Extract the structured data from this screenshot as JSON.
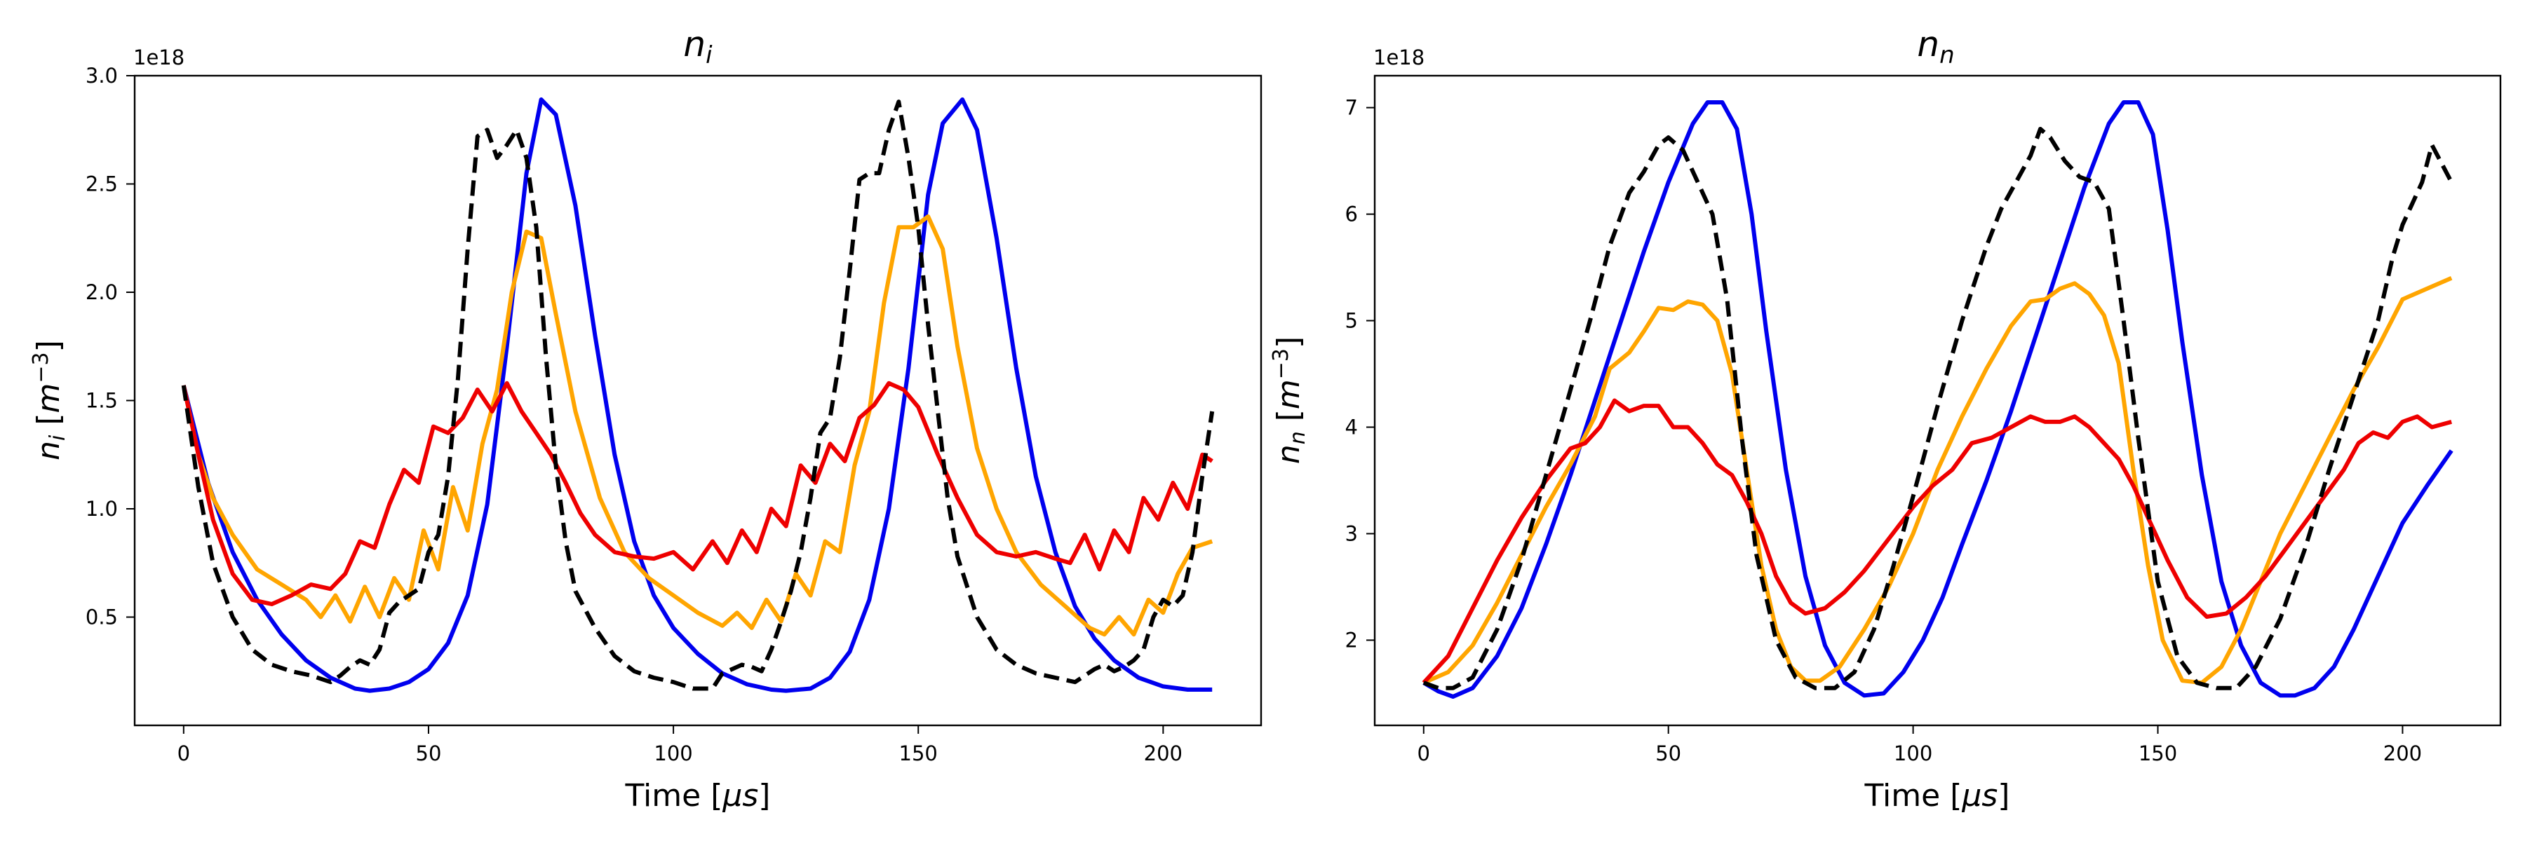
{
  "chart_data": [
    {
      "type": "line",
      "title": "n_i",
      "title_base": "n",
      "title_sub": "i",
      "xlabel": "Time [μs]",
      "xlabel_main": "Time [",
      "xlabel_unit": "μs",
      "xlabel_close": "]",
      "ylabel": "n_i [m^-3]",
      "ylabel_base": "n",
      "ylabel_sub": "i",
      "ylabel_unit_open": " [",
      "ylabel_unit_base": "m",
      "ylabel_unit_sup": "−3",
      "ylabel_unit_close": "]",
      "y_offset_label": "1e18",
      "xlim": [
        -10,
        220
      ],
      "ylim": [
        0.0,
        3.0
      ],
      "xticks": [
        0,
        50,
        100,
        150,
        200
      ],
      "yticks": [
        0.5,
        1.0,
        1.5,
        2.0,
        2.5,
        3.0
      ],
      "ytick_labels": [
        "0.5",
        "1.0",
        "1.5",
        "2.0",
        "2.5",
        "3.0"
      ],
      "grid": false,
      "series": [
        {
          "color": "#0000ee",
          "dash": "solid",
          "x": [
            0,
            5,
            10,
            15,
            20,
            25,
            30,
            35,
            38,
            42,
            46,
            50,
            54,
            58,
            62,
            66,
            70,
            73,
            76,
            80,
            84,
            88,
            92,
            96,
            100,
            105,
            110,
            115,
            120,
            123,
            128,
            132,
            136,
            140,
            144,
            148,
            152,
            155,
            159,
            162,
            166,
            170,
            174,
            178,
            182,
            186,
            190,
            195,
            200,
            205,
            210
          ],
          "y": [
            1.57,
            1.12,
            0.8,
            0.58,
            0.42,
            0.3,
            0.22,
            0.17,
            0.16,
            0.17,
            0.2,
            0.26,
            0.38,
            0.6,
            1.02,
            1.75,
            2.55,
            2.89,
            2.82,
            2.4,
            1.8,
            1.25,
            0.85,
            0.6,
            0.45,
            0.33,
            0.24,
            0.19,
            0.165,
            0.16,
            0.17,
            0.22,
            0.34,
            0.58,
            1.0,
            1.65,
            2.45,
            2.78,
            2.89,
            2.75,
            2.25,
            1.65,
            1.15,
            0.8,
            0.55,
            0.4,
            0.3,
            0.22,
            0.18,
            0.165,
            0.165
          ]
        },
        {
          "color": "#ffa500",
          "dash": "solid",
          "x": [
            0,
            3,
            6,
            10,
            15,
            20,
            25,
            28,
            31,
            34,
            37,
            40,
            43,
            46,
            49,
            52,
            55,
            58,
            61,
            64,
            67,
            70,
            73,
            76,
            80,
            85,
            90,
            95,
            100,
            105,
            110,
            113,
            116,
            119,
            122,
            125,
            128,
            131,
            134,
            137,
            140,
            143,
            146,
            149,
            152,
            155,
            158,
            162,
            166,
            170,
            175,
            180,
            185,
            188,
            191,
            194,
            197,
            200,
            203,
            206,
            210
          ],
          "y": [
            1.57,
            1.25,
            1.05,
            0.88,
            0.72,
            0.65,
            0.58,
            0.5,
            0.6,
            0.48,
            0.64,
            0.5,
            0.68,
            0.58,
            0.9,
            0.72,
            1.1,
            0.9,
            1.3,
            1.55,
            2.0,
            2.28,
            2.25,
            1.9,
            1.45,
            1.05,
            0.8,
            0.68,
            0.6,
            0.52,
            0.46,
            0.52,
            0.45,
            0.58,
            0.48,
            0.7,
            0.6,
            0.85,
            0.8,
            1.2,
            1.45,
            1.95,
            2.3,
            2.3,
            2.35,
            2.2,
            1.75,
            1.28,
            1.0,
            0.8,
            0.65,
            0.55,
            0.45,
            0.42,
            0.5,
            0.42,
            0.58,
            0.52,
            0.7,
            0.82,
            0.85
          ]
        },
        {
          "color": "#ee0000",
          "dash": "solid",
          "x": [
            0,
            3,
            6,
            10,
            14,
            18,
            22,
            26,
            30,
            33,
            36,
            39,
            42,
            45,
            48,
            51,
            54,
            57,
            60,
            63,
            66,
            69,
            72,
            75,
            78,
            81,
            84,
            88,
            92,
            96,
            100,
            104,
            108,
            111,
            114,
            117,
            120,
            123,
            126,
            129,
            132,
            135,
            138,
            141,
            144,
            147,
            150,
            154,
            158,
            162,
            166,
            170,
            174,
            178,
            181,
            184,
            187,
            190,
            193,
            196,
            199,
            202,
            205,
            208,
            210
          ],
          "y": [
            1.57,
            1.25,
            0.95,
            0.7,
            0.58,
            0.56,
            0.6,
            0.65,
            0.63,
            0.7,
            0.85,
            0.82,
            1.02,
            1.18,
            1.12,
            1.38,
            1.35,
            1.42,
            1.55,
            1.45,
            1.58,
            1.45,
            1.35,
            1.25,
            1.12,
            0.98,
            0.88,
            0.8,
            0.78,
            0.77,
            0.8,
            0.72,
            0.85,
            0.75,
            0.9,
            0.8,
            1.0,
            0.92,
            1.2,
            1.12,
            1.3,
            1.22,
            1.42,
            1.48,
            1.58,
            1.55,
            1.47,
            1.25,
            1.05,
            0.88,
            0.8,
            0.78,
            0.8,
            0.77,
            0.75,
            0.88,
            0.72,
            0.9,
            0.8,
            1.05,
            0.95,
            1.12,
            1.0,
            1.25,
            1.22
          ]
        },
        {
          "color": "#000000",
          "dash": "dashed",
          "x": [
            0,
            3,
            6,
            10,
            14,
            18,
            22,
            26,
            30,
            32,
            34,
            36,
            38,
            40,
            42,
            44,
            46,
            48,
            50,
            52,
            54,
            56,
            58,
            60,
            62,
            64,
            66,
            68,
            70,
            72,
            74,
            76,
            78,
            80,
            84,
            88,
            92,
            96,
            100,
            104,
            108,
            110,
            112,
            114,
            116,
            118,
            120,
            122,
            124,
            126,
            128,
            130,
            132,
            134,
            136,
            138,
            140,
            142,
            144,
            146,
            148,
            150,
            152,
            154,
            156,
            158,
            162,
            166,
            170,
            174,
            178,
            182,
            186,
            188,
            190,
            192,
            194,
            196,
            198,
            200,
            202,
            204,
            206,
            208,
            210
          ],
          "y": [
            1.57,
            1.1,
            0.75,
            0.5,
            0.35,
            0.28,
            0.25,
            0.23,
            0.2,
            0.23,
            0.27,
            0.3,
            0.28,
            0.35,
            0.52,
            0.57,
            0.6,
            0.63,
            0.8,
            0.88,
            1.15,
            1.6,
            2.2,
            2.72,
            2.75,
            2.62,
            2.68,
            2.75,
            2.62,
            2.3,
            1.7,
            1.2,
            0.85,
            0.62,
            0.45,
            0.32,
            0.25,
            0.22,
            0.2,
            0.17,
            0.17,
            0.24,
            0.26,
            0.28,
            0.27,
            0.25,
            0.35,
            0.48,
            0.62,
            0.8,
            1.05,
            1.35,
            1.42,
            1.7,
            2.1,
            2.52,
            2.55,
            2.55,
            2.75,
            2.88,
            2.62,
            2.3,
            1.85,
            1.45,
            1.05,
            0.78,
            0.5,
            0.35,
            0.28,
            0.24,
            0.22,
            0.2,
            0.26,
            0.28,
            0.25,
            0.27,
            0.3,
            0.35,
            0.5,
            0.58,
            0.55,
            0.6,
            0.8,
            1.15,
            1.45
          ]
        }
      ]
    },
    {
      "type": "line",
      "title": "n_n",
      "title_base": "n",
      "title_sub": "n",
      "xlabel": "Time [μs]",
      "xlabel_main": "Time [",
      "xlabel_unit": "μs",
      "xlabel_close": "]",
      "ylabel": "n_n [m^-3]",
      "ylabel_base": "n",
      "ylabel_sub": "n",
      "ylabel_unit_open": " [",
      "ylabel_unit_base": "m",
      "ylabel_unit_sup": "−3",
      "ylabel_unit_close": "]",
      "y_offset_label": "1e18",
      "xlim": [
        -10,
        220
      ],
      "ylim": [
        1.2,
        7.3
      ],
      "xticks": [
        0,
        50,
        100,
        150,
        200
      ],
      "yticks": [
        2,
        3,
        4,
        5,
        6,
        7
      ],
      "ytick_labels": [
        "2",
        "3",
        "4",
        "5",
        "6",
        "7"
      ],
      "grid": false,
      "series": [
        {
          "color": "#0000ee",
          "dash": "solid",
          "x": [
            0,
            3,
            6,
            10,
            15,
            20,
            25,
            30,
            35,
            40,
            45,
            50,
            55,
            58,
            61,
            64,
            67,
            70,
            74,
            78,
            82,
            86,
            90,
            94,
            98,
            102,
            106,
            110,
            115,
            120,
            125,
            130,
            135,
            140,
            143,
            146,
            149,
            152,
            155,
            159,
            163,
            167,
            171,
            175,
            178,
            182,
            186,
            190,
            195,
            200,
            205,
            210
          ],
          "y": [
            1.6,
            1.52,
            1.47,
            1.55,
            1.85,
            2.3,
            2.9,
            3.55,
            4.25,
            4.95,
            5.65,
            6.3,
            6.85,
            7.05,
            7.05,
            6.8,
            6.0,
            4.9,
            3.6,
            2.6,
            1.95,
            1.6,
            1.48,
            1.5,
            1.7,
            2.0,
            2.4,
            2.9,
            3.5,
            4.15,
            4.85,
            5.55,
            6.25,
            6.85,
            7.05,
            7.05,
            6.75,
            5.85,
            4.8,
            3.55,
            2.55,
            1.95,
            1.6,
            1.48,
            1.48,
            1.55,
            1.75,
            2.1,
            2.6,
            3.1,
            3.45,
            3.78
          ]
        },
        {
          "color": "#ffa500",
          "dash": "solid",
          "x": [
            0,
            5,
            10,
            15,
            20,
            25,
            30,
            35,
            38,
            42,
            45,
            48,
            51,
            54,
            57,
            60,
            63,
            66,
            69,
            72,
            75,
            78,
            81,
            85,
            90,
            95,
            100,
            105,
            110,
            115,
            120,
            124,
            127,
            130,
            133,
            136,
            139,
            142,
            145,
            148,
            151,
            155,
            159,
            163,
            167,
            171,
            175,
            180,
            185,
            190,
            195,
            200,
            205,
            210
          ],
          "y": [
            1.6,
            1.7,
            1.95,
            2.35,
            2.8,
            3.25,
            3.65,
            4.1,
            4.55,
            4.7,
            4.9,
            5.12,
            5.1,
            5.18,
            5.15,
            5.0,
            4.5,
            3.6,
            2.7,
            2.1,
            1.75,
            1.62,
            1.62,
            1.75,
            2.1,
            2.5,
            3.0,
            3.6,
            4.1,
            4.55,
            4.95,
            5.18,
            5.2,
            5.3,
            5.35,
            5.25,
            5.05,
            4.6,
            3.6,
            2.7,
            2.0,
            1.62,
            1.6,
            1.75,
            2.1,
            2.55,
            3.0,
            3.45,
            3.9,
            4.35,
            4.75,
            5.2,
            5.3,
            5.4
          ]
        },
        {
          "color": "#ee0000",
          "dash": "solid",
          "x": [
            0,
            5,
            10,
            15,
            20,
            25,
            30,
            33,
            36,
            39,
            42,
            45,
            48,
            51,
            54,
            57,
            60,
            63,
            66,
            69,
            72,
            75,
            78,
            82,
            86,
            90,
            95,
            100,
            104,
            108,
            112,
            116,
            120,
            124,
            127,
            130,
            133,
            136,
            139,
            142,
            145,
            148,
            152,
            156,
            160,
            164,
            168,
            172,
            176,
            180,
            184,
            188,
            191,
            194,
            197,
            200,
            203,
            206,
            210
          ],
          "y": [
            1.6,
            1.85,
            2.3,
            2.75,
            3.15,
            3.5,
            3.8,
            3.85,
            4.0,
            4.25,
            4.15,
            4.2,
            4.2,
            4.0,
            4.0,
            3.85,
            3.65,
            3.55,
            3.3,
            3.0,
            2.6,
            2.35,
            2.25,
            2.3,
            2.45,
            2.65,
            2.95,
            3.25,
            3.45,
            3.6,
            3.85,
            3.9,
            4.0,
            4.1,
            4.05,
            4.05,
            4.1,
            4.0,
            3.85,
            3.7,
            3.45,
            3.15,
            2.75,
            2.4,
            2.22,
            2.25,
            2.4,
            2.6,
            2.85,
            3.1,
            3.35,
            3.6,
            3.85,
            3.95,
            3.9,
            4.05,
            4.1,
            4.0,
            4.05
          ]
        },
        {
          "color": "#000000",
          "dash": "dashed",
          "x": [
            0,
            3,
            6,
            10,
            15,
            20,
            25,
            30,
            34,
            38,
            42,
            45,
            48,
            50,
            53,
            56,
            59,
            62,
            65,
            68,
            72,
            76,
            80,
            84,
            88,
            92,
            96,
            100,
            105,
            110,
            115,
            118,
            121,
            124,
            126,
            128,
            131,
            134,
            137,
            140,
            143,
            146,
            150,
            154,
            158,
            162,
            166,
            170,
            175,
            180,
            185,
            190,
            195,
            198,
            200,
            202,
            204,
            206,
            210
          ],
          "y": [
            1.6,
            1.55,
            1.55,
            1.65,
            2.1,
            2.75,
            3.55,
            4.35,
            5.0,
            5.7,
            6.2,
            6.4,
            6.65,
            6.72,
            6.6,
            6.3,
            6.0,
            5.2,
            3.9,
            2.8,
            2.0,
            1.65,
            1.55,
            1.55,
            1.7,
            2.1,
            2.7,
            3.35,
            4.2,
            5.0,
            5.7,
            6.05,
            6.3,
            6.55,
            6.8,
            6.72,
            6.5,
            6.35,
            6.3,
            6.05,
            5.0,
            3.9,
            2.55,
            1.85,
            1.6,
            1.55,
            1.55,
            1.75,
            2.2,
            2.85,
            3.6,
            4.3,
            5.0,
            5.6,
            5.9,
            6.1,
            6.3,
            6.65,
            6.3
          ]
        }
      ]
    }
  ]
}
